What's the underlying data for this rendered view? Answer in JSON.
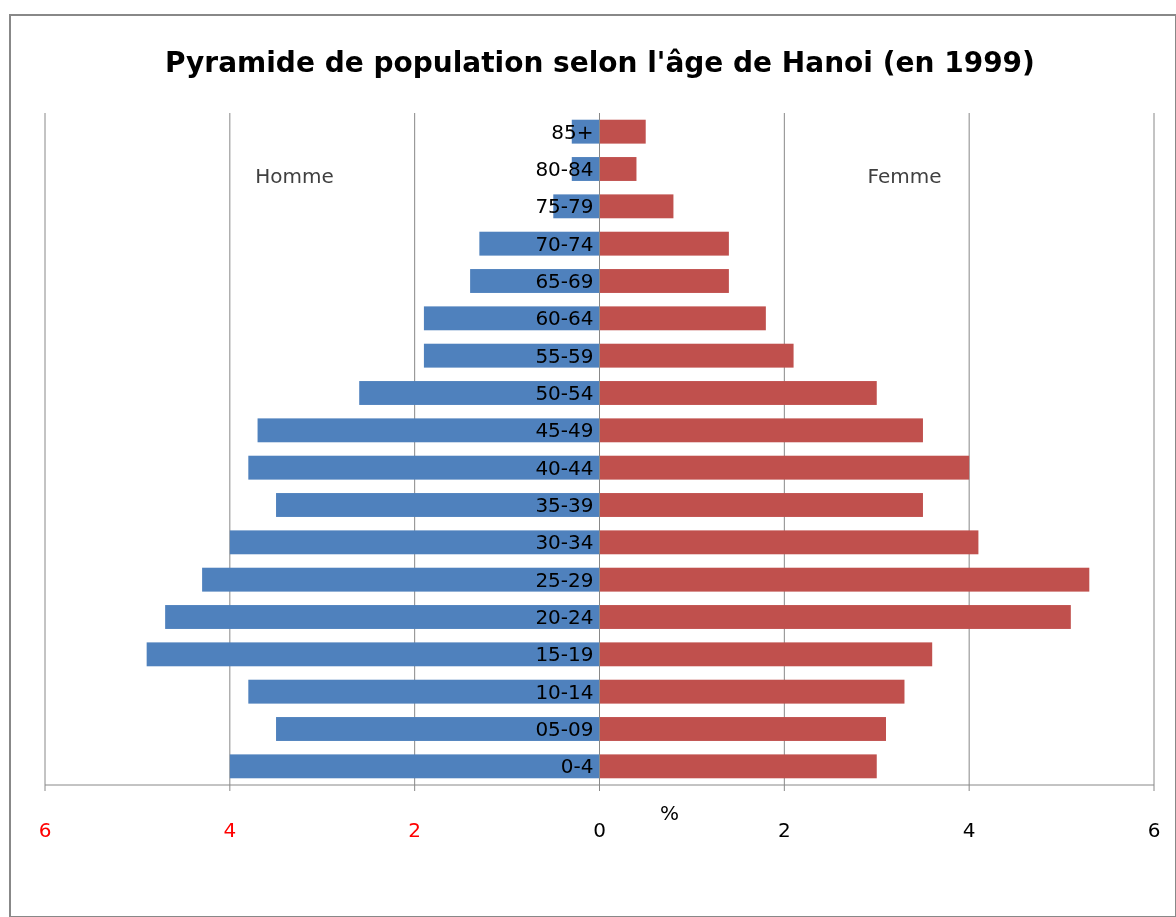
{
  "chart_data": {
    "type": "bar",
    "orientation": "horizontal",
    "stacked": true,
    "title": "Pyramide de population selon l'âge de Hanoi (en 1999)",
    "xlabel": "%",
    "categories": [
      "85+",
      "80-84",
      "75-79",
      "70-74",
      "65-69",
      "60-64",
      "55-59",
      "50-54",
      "45-49",
      "40-44",
      "35-39",
      "30-34",
      "25-29",
      "20-24",
      "15-19",
      "10-14",
      "05-09",
      "0-4"
    ],
    "series": [
      {
        "name": "Homme",
        "color": "#4f81bd",
        "values": [
          -0.3,
          -0.3,
          -0.5,
          -1.3,
          -1.4,
          -1.9,
          -1.9,
          -2.6,
          -3.7,
          -3.8,
          -3.5,
          -4.0,
          -4.3,
          -4.7,
          -4.9,
          -3.8,
          -3.5,
          -4.0
        ]
      },
      {
        "name": "Femme",
        "color": "#c0504d",
        "values": [
          0.5,
          0.4,
          0.8,
          1.4,
          1.4,
          1.8,
          2.1,
          3.0,
          3.5,
          4.0,
          3.5,
          4.1,
          5.3,
          5.1,
          3.6,
          3.3,
          3.1,
          3.0
        ]
      }
    ],
    "xlim": [
      -6,
      6
    ],
    "xticks": [
      {
        "value": -6,
        "label": "6"
      },
      {
        "value": -4,
        "label": "4"
      },
      {
        "value": -2,
        "label": "2"
      },
      0,
      2,
      4,
      6
    ],
    "grid": "x"
  }
}
